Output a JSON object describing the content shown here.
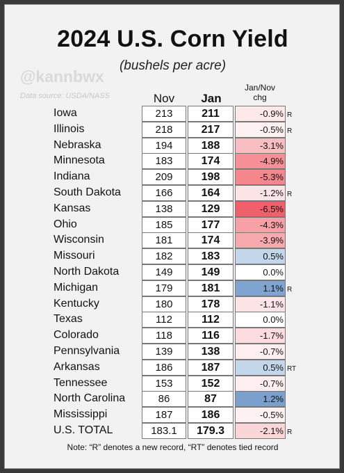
{
  "header": {
    "title": "2024 U.S. Corn Yield",
    "subtitle": "(bushels per acre)",
    "handle": "@kannbwx",
    "source": "Data source: USDA/NASS"
  },
  "columns": {
    "nov": "Nov",
    "jan": "Jan",
    "chg_line1": "Jan/Nov",
    "chg_line2": "chg"
  },
  "rows": [
    {
      "state": "Iowa",
      "nov": "213",
      "jan": "211",
      "chg": "-0.9%",
      "flag": "R",
      "color": "#fde9ea"
    },
    {
      "state": "Illinois",
      "nov": "218",
      "jan": "217",
      "chg": "-0.5%",
      "flag": "R",
      "color": "#fef1f2"
    },
    {
      "state": "Nebraska",
      "nov": "194",
      "jan": "188",
      "chg": "-3.1%",
      "flag": "",
      "color": "#f9bec2"
    },
    {
      "state": "Minnesota",
      "nov": "183",
      "jan": "174",
      "chg": "-4.9%",
      "flag": "",
      "color": "#f69096"
    },
    {
      "state": "Indiana",
      "nov": "209",
      "jan": "198",
      "chg": "-5.3%",
      "flag": "",
      "color": "#f4868c"
    },
    {
      "state": "South Dakota",
      "nov": "166",
      "jan": "164",
      "chg": "-1.2%",
      "flag": "R",
      "color": "#fde4e6"
    },
    {
      "state": "Kansas",
      "nov": "138",
      "jan": "129",
      "chg": "-6.5%",
      "flag": "",
      "color": "#f0606a"
    },
    {
      "state": "Ohio",
      "nov": "185",
      "jan": "177",
      "chg": "-4.3%",
      "flag": "",
      "color": "#f7a0a5"
    },
    {
      "state": "Wisconsin",
      "nov": "181",
      "jan": "174",
      "chg": "-3.9%",
      "flag": "",
      "color": "#f8a9ae"
    },
    {
      "state": "Missouri",
      "nov": "182",
      "jan": "183",
      "chg": "0.5%",
      "flag": "",
      "color": "#c4d7ea"
    },
    {
      "state": "North Dakota",
      "nov": "149",
      "jan": "149",
      "chg": "0.0%",
      "flag": "",
      "color": "#ffffff"
    },
    {
      "state": "Michigan",
      "nov": "179",
      "jan": "181",
      "chg": "1.1%",
      "flag": "R",
      "color": "#7ea4cf"
    },
    {
      "state": "Kentucky",
      "nov": "180",
      "jan": "178",
      "chg": "-1.1%",
      "flag": "",
      "color": "#fde5e7"
    },
    {
      "state": "Texas",
      "nov": "112",
      "jan": "112",
      "chg": "0.0%",
      "flag": "",
      "color": "#ffffff"
    },
    {
      "state": "Colorado",
      "nov": "118",
      "jan": "116",
      "chg": "-1.7%",
      "flag": "",
      "color": "#fcdcdf"
    },
    {
      "state": "Pennsylvania",
      "nov": "139",
      "jan": "138",
      "chg": "-0.7%",
      "flag": "",
      "color": "#feeeef"
    },
    {
      "state": "Arkansas",
      "nov": "186",
      "jan": "187",
      "chg": "0.5%",
      "flag": "RT",
      "color": "#c4d7ea"
    },
    {
      "state": "Tennessee",
      "nov": "153",
      "jan": "152",
      "chg": "-0.7%",
      "flag": "",
      "color": "#feeeef"
    },
    {
      "state": "North Carolina",
      "nov": "86",
      "jan": "87",
      "chg": "1.2%",
      "flag": "",
      "color": "#7aa1cd"
    },
    {
      "state": "Mississippi",
      "nov": "187",
      "jan": "186",
      "chg": "-0.5%",
      "flag": "",
      "color": "#fef1f2"
    },
    {
      "state": "U.S. TOTAL",
      "nov": "183.1",
      "jan": "179.3",
      "chg": "-2.1%",
      "flag": "R",
      "color": "#fbd6d9"
    }
  ],
  "note": "Note: “R” denotes a new record, “RT” denotes tied record"
}
